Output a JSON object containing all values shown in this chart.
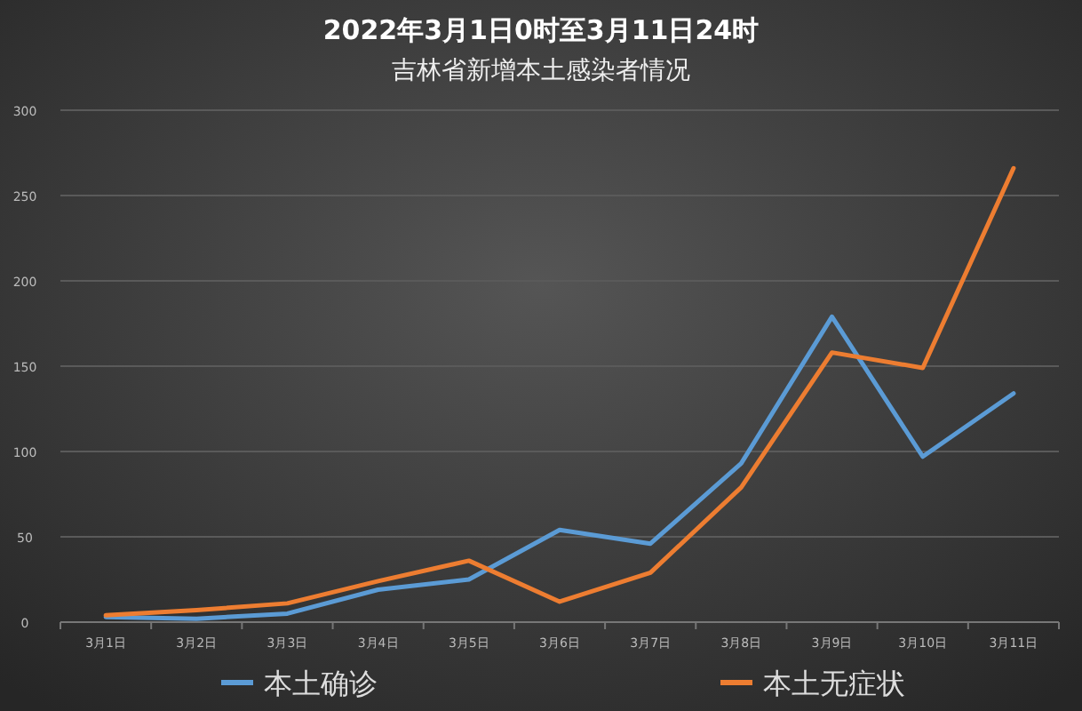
{
  "chart_data": {
    "type": "line",
    "title": "2022年3月1日0时至3月11日24时",
    "subtitle": "吉林省新增本土感染者情况",
    "categories": [
      "3月1日",
      "3月2日",
      "3月3日",
      "3月4日",
      "3月5日",
      "3月6日",
      "3月7日",
      "3月8日",
      "3月9日",
      "3月10日",
      "3月11日"
    ],
    "series": [
      {
        "name": "本土确诊",
        "color": "#5b9bd5",
        "values": [
          3,
          2,
          5,
          19,
          25,
          54,
          46,
          93,
          179,
          97,
          134
        ]
      },
      {
        "name": "本土无症状",
        "color": "#ed7d31",
        "values": [
          4,
          7,
          11,
          24,
          36,
          12,
          29,
          79,
          158,
          149,
          266
        ]
      }
    ],
    "ylim": [
      0,
      300
    ],
    "yticks": [
      0,
      50,
      100,
      150,
      200,
      250,
      300
    ],
    "grid": "y",
    "legend": "bottom",
    "marker": "none",
    "line_style": "solid"
  }
}
